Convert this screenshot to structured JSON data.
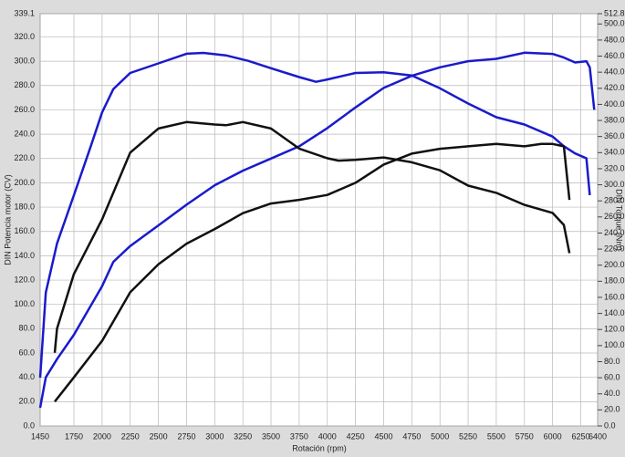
{
  "chart_data": {
    "type": "line",
    "xlabel": "Rotación (rpm)",
    "ylabel": "DIN Potencia motor (CV)",
    "y2label": "DIN Torque (Nm)",
    "xlim": [
      1450,
      6400
    ],
    "xticks": [
      1450,
      1750,
      2000,
      2250,
      2500,
      2750,
      3000,
      3250,
      3500,
      3750,
      4000,
      4250,
      4500,
      4750,
      5000,
      5250,
      5500,
      5750,
      6000,
      6250,
      6400
    ],
    "ylim": [
      0,
      339.1
    ],
    "yticks": [
      {
        "value": 0,
        "label": "0.0"
      },
      {
        "value": 20,
        "label": "20.0"
      },
      {
        "value": 40,
        "label": "40.0"
      },
      {
        "value": 60,
        "label": "60.0"
      },
      {
        "value": 80,
        "label": "80.0"
      },
      {
        "value": 100,
        "label": "100.0"
      },
      {
        "value": 120,
        "label": "120.0"
      },
      {
        "value": 140,
        "label": "140.0"
      },
      {
        "value": 160,
        "label": "160.0"
      },
      {
        "value": 180,
        "label": "180.0"
      },
      {
        "value": 200,
        "label": "200.0"
      },
      {
        "value": 220,
        "label": "220.0"
      },
      {
        "value": 240,
        "label": "240.0"
      },
      {
        "value": 260,
        "label": "260.0"
      },
      {
        "value": 280,
        "label": "280.0"
      },
      {
        "value": 300,
        "label": "300.0"
      },
      {
        "value": 320,
        "label": "320.0"
      },
      339.1
    ],
    "y2lim": [
      0,
      512.8
    ],
    "y2ticks": [
      {
        "value": 0,
        "label": "0.0"
      },
      {
        "value": 20,
        "label": "20.0"
      },
      {
        "value": 40,
        "label": "40.0"
      },
      {
        "value": 60,
        "label": "60.0"
      },
      {
        "value": 80,
        "label": "80.0"
      },
      {
        "value": 100,
        "label": "100.0"
      },
      {
        "value": 120,
        "label": "120.0"
      },
      {
        "value": 140,
        "label": "140.0"
      },
      {
        "value": 160,
        "label": "160.0"
      },
      {
        "value": 180,
        "label": "180.0"
      },
      {
        "value": 200,
        "label": "200.0"
      },
      {
        "value": 220,
        "label": "220.0"
      },
      {
        "value": 240,
        "label": "240.0"
      },
      {
        "value": 260,
        "label": "260.0"
      },
      {
        "value": 280,
        "label": "280.0"
      },
      {
        "value": 300,
        "label": "300.0"
      },
      {
        "value": 320,
        "label": "320.0"
      },
      {
        "value": 340,
        "label": "340.0"
      },
      {
        "value": 360,
        "label": "360.0"
      },
      {
        "value": 380,
        "label": "380.0"
      },
      {
        "value": 400,
        "label": "400.0"
      },
      {
        "value": 420,
        "label": "420.0"
      },
      {
        "value": 440,
        "label": "440.0"
      },
      {
        "value": 460,
        "label": "460.0"
      },
      {
        "value": 480,
        "label": "480.0"
      },
      {
        "value": 500,
        "label": "500.0"
      },
      512.8
    ],
    "grid": true,
    "series": [
      {
        "color": "#1a1acc",
        "axis": "y2",
        "x": [
          1450,
          1500,
          1600,
          1750,
          1900,
          2000,
          2100,
          2250,
          2500,
          2750,
          2900,
          3100,
          3300,
          3500,
          3750,
          3900,
          4000,
          4250,
          4500,
          4750,
          5000,
          5250,
          5500,
          5750,
          6000,
          6100,
          6200,
          6300,
          6330
        ],
        "values": [
          60,
          166,
          227,
          287,
          348,
          390,
          419,
          439,
          451,
          463,
          464,
          461,
          454,
          445,
          434,
          428,
          431,
          439,
          440,
          436,
          420,
          401,
          384,
          375,
          360,
          348,
          339,
          333,
          287
        ]
      },
      {
        "color": "#1a1acc",
        "axis": "y",
        "x": [
          1450,
          1500,
          1600,
          1750,
          2000,
          2100,
          2250,
          2500,
          2750,
          3000,
          3250,
          3500,
          3750,
          4000,
          4250,
          4500,
          4750,
          5000,
          5250,
          5500,
          5750,
          6000,
          6100,
          6200,
          6300,
          6330,
          6370
        ],
        "values": [
          15,
          40,
          55,
          75,
          115,
          135,
          148,
          165,
          182,
          198,
          210,
          220,
          230,
          245,
          262,
          278,
          288,
          295,
          300,
          302,
          307,
          306,
          303,
          299,
          300,
          295,
          260
        ]
      },
      {
        "color": "#111111",
        "axis": "y2",
        "x": [
          1580,
          1600,
          1750,
          2000,
          2250,
          2500,
          2750,
          3000,
          3100,
          3250,
          3500,
          3750,
          4000,
          4100,
          4250,
          4500,
          4750,
          5000,
          5250,
          5500,
          5750,
          6000,
          6100,
          6150
        ],
        "values": [
          91,
          121,
          189,
          257,
          340,
          370,
          378,
          375,
          374,
          378,
          370,
          345,
          333,
          330,
          331,
          334,
          328,
          318,
          299,
          290,
          275,
          265,
          250,
          215
        ]
      },
      {
        "color": "#111111",
        "axis": "y",
        "x": [
          1580,
          1750,
          2000,
          2250,
          2500,
          2750,
          3000,
          3250,
          3500,
          3750,
          4000,
          4250,
          4500,
          4750,
          5000,
          5250,
          5500,
          5750,
          5900,
          6000,
          6100,
          6150
        ],
        "values": [
          20,
          40,
          70,
          110,
          133,
          150,
          162,
          175,
          183,
          186,
          190,
          200,
          215,
          224,
          228,
          230,
          232,
          230,
          232,
          232,
          230,
          186
        ]
      }
    ]
  }
}
